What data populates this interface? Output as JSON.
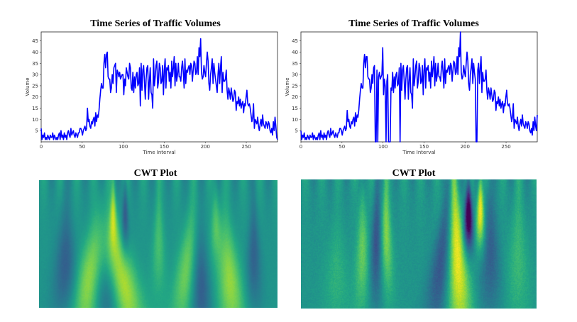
{
  "chart_data": [
    {
      "type": "line",
      "title": "Time Series of Traffic Volumes",
      "xlabel": "Time Interval",
      "ylabel": "Volume",
      "xlim": [
        0,
        288
      ],
      "ylim": [
        0,
        49
      ],
      "xticks": [
        "0",
        "50",
        "100",
        "150",
        "200",
        "250"
      ],
      "yticks": [
        "5",
        "10",
        "15",
        "20",
        "25",
        "30",
        "35",
        "40",
        "45"
      ],
      "series_color": "#0000ff",
      "grid": false,
      "series": [
        {
          "name": "Volume",
          "values": [
            6,
            1,
            3,
            2,
            4,
            1,
            2,
            1,
            3,
            2,
            1,
            3,
            2,
            2,
            4,
            1,
            3,
            2,
            1,
            2,
            1,
            3,
            4,
            1,
            5,
            2,
            3,
            1,
            4,
            2,
            3,
            1,
            4,
            5,
            3,
            2,
            6,
            3,
            4,
            5,
            3,
            2,
            4,
            3,
            2,
            4,
            4,
            6,
            6,
            5,
            3,
            5,
            6,
            7,
            5,
            6,
            15,
            9,
            10,
            7,
            6,
            9,
            8,
            10,
            11,
            7,
            13,
            9,
            12,
            11,
            14,
            19,
            23,
            26,
            24,
            24,
            35,
            39,
            33,
            39,
            40,
            29,
            28,
            28,
            22,
            24,
            30,
            26,
            33,
            34,
            35,
            22,
            32,
            31,
            29,
            31,
            28,
            29,
            30,
            30,
            21,
            28,
            25,
            33,
            31,
            29,
            28,
            35,
            33,
            24,
            23,
            31,
            22,
            29,
            24,
            30,
            31,
            25,
            26,
            33,
            16,
            35,
            23,
            32,
            34,
            27,
            19,
            28,
            33,
            34,
            19,
            27,
            33,
            22,
            21,
            15,
            37,
            25,
            29,
            34,
            36,
            24,
            27,
            35,
            33,
            26,
            27,
            34,
            21,
            32,
            37,
            24,
            33,
            32,
            34,
            27,
            31,
            24,
            36,
            29,
            33,
            38,
            25,
            35,
            27,
            30,
            35,
            29,
            29,
            27,
            33,
            36,
            31,
            24,
            37,
            26,
            32,
            31,
            33,
            34,
            30,
            35,
            34,
            27,
            32,
            36,
            35,
            30,
            31,
            38,
            30,
            42,
            38,
            46,
            31,
            28,
            29,
            34,
            31,
            29,
            35,
            40,
            36,
            26,
            23,
            30,
            33,
            37,
            26,
            35,
            31,
            28,
            25,
            22,
            30,
            35,
            26,
            33,
            38,
            22,
            31,
            27,
            27,
            28,
            32,
            23,
            19,
            24,
            22,
            19,
            24,
            21,
            18,
            19,
            23,
            22,
            14,
            18,
            17,
            20,
            16,
            19,
            15,
            17,
            18,
            13,
            17,
            16,
            20,
            23,
            17,
            16,
            17,
            15,
            12,
            9,
            11,
            17,
            6,
            10,
            9,
            8,
            11,
            7,
            5,
            8,
            10,
            7,
            12,
            8,
            7,
            6,
            9,
            8,
            6,
            9,
            8,
            5,
            4,
            6,
            3,
            9,
            5,
            11,
            7,
            2,
            1
          ]
        }
      ]
    },
    {
      "type": "line",
      "title": "Time Series of Traffic Volumes",
      "xlabel": "Time Interval",
      "ylabel": "Volume",
      "xlim": [
        0,
        288
      ],
      "ylim": [
        0,
        49
      ],
      "xticks": [
        "0",
        "50",
        "100",
        "150",
        "200",
        "250"
      ],
      "yticks": [
        "5",
        "10",
        "15",
        "20",
        "25",
        "30",
        "35",
        "40",
        "45"
      ],
      "series_color": "#0000ff",
      "grid": false,
      "series": [
        {
          "name": "Volume",
          "values": [
            5,
            1,
            3,
            2,
            4,
            1,
            2,
            1,
            3,
            2,
            1,
            3,
            2,
            2,
            4,
            1,
            3,
            2,
            1,
            2,
            1,
            3,
            4,
            1,
            5,
            2,
            3,
            1,
            4,
            2,
            3,
            1,
            4,
            5,
            3,
            2,
            6,
            3,
            4,
            5,
            3,
            2,
            4,
            3,
            2,
            4,
            4,
            6,
            6,
            5,
            3,
            5,
            6,
            7,
            5,
            6,
            14,
            9,
            10,
            7,
            6,
            9,
            8,
            10,
            11,
            7,
            13,
            9,
            12,
            11,
            14,
            19,
            23,
            26,
            24,
            24,
            35,
            39,
            33,
            38,
            38,
            29,
            28,
            28,
            22,
            24,
            30,
            26,
            33,
            34,
            0,
            0,
            32,
            0,
            29,
            31,
            28,
            29,
            30,
            42,
            21,
            28,
            25,
            0,
            27,
            30,
            0,
            0,
            0,
            24,
            23,
            31,
            22,
            29,
            24,
            30,
            31,
            25,
            26,
            33,
            0,
            35,
            23,
            32,
            34,
            27,
            19,
            28,
            33,
            34,
            19,
            27,
            33,
            22,
            21,
            15,
            37,
            25,
            29,
            34,
            36,
            24,
            27,
            35,
            33,
            26,
            27,
            34,
            21,
            32,
            37,
            24,
            33,
            32,
            34,
            27,
            31,
            24,
            36,
            29,
            33,
            38,
            25,
            35,
            27,
            30,
            35,
            29,
            29,
            27,
            33,
            36,
            31,
            24,
            37,
            26,
            32,
            31,
            33,
            34,
            30,
            35,
            34,
            27,
            32,
            36,
            35,
            30,
            31,
            38,
            30,
            42,
            38,
            49,
            31,
            28,
            29,
            34,
            31,
            29,
            35,
            40,
            36,
            26,
            23,
            30,
            33,
            37,
            26,
            35,
            31,
            28,
            0,
            0,
            32,
            35,
            26,
            33,
            38,
            22,
            31,
            27,
            27,
            28,
            32,
            23,
            19,
            24,
            22,
            19,
            24,
            21,
            18,
            19,
            23,
            22,
            14,
            18,
            17,
            20,
            16,
            19,
            15,
            17,
            18,
            13,
            17,
            16,
            20,
            23,
            17,
            16,
            17,
            15,
            12,
            9,
            11,
            17,
            6,
            10,
            9,
            8,
            11,
            7,
            5,
            8,
            10,
            7,
            12,
            8,
            7,
            6,
            9,
            8,
            6,
            9,
            8,
            5,
            4,
            6,
            3,
            9,
            5,
            11,
            7,
            5,
            12
          ]
        }
      ]
    },
    {
      "type": "heatmap",
      "title": "CWT Plot",
      "colormap": "viridis",
      "xlabel": "",
      "ylabel": ""
    },
    {
      "type": "heatmap",
      "title": "CWT Plot",
      "colormap": "viridis",
      "xlabel": "",
      "ylabel": ""
    }
  ]
}
